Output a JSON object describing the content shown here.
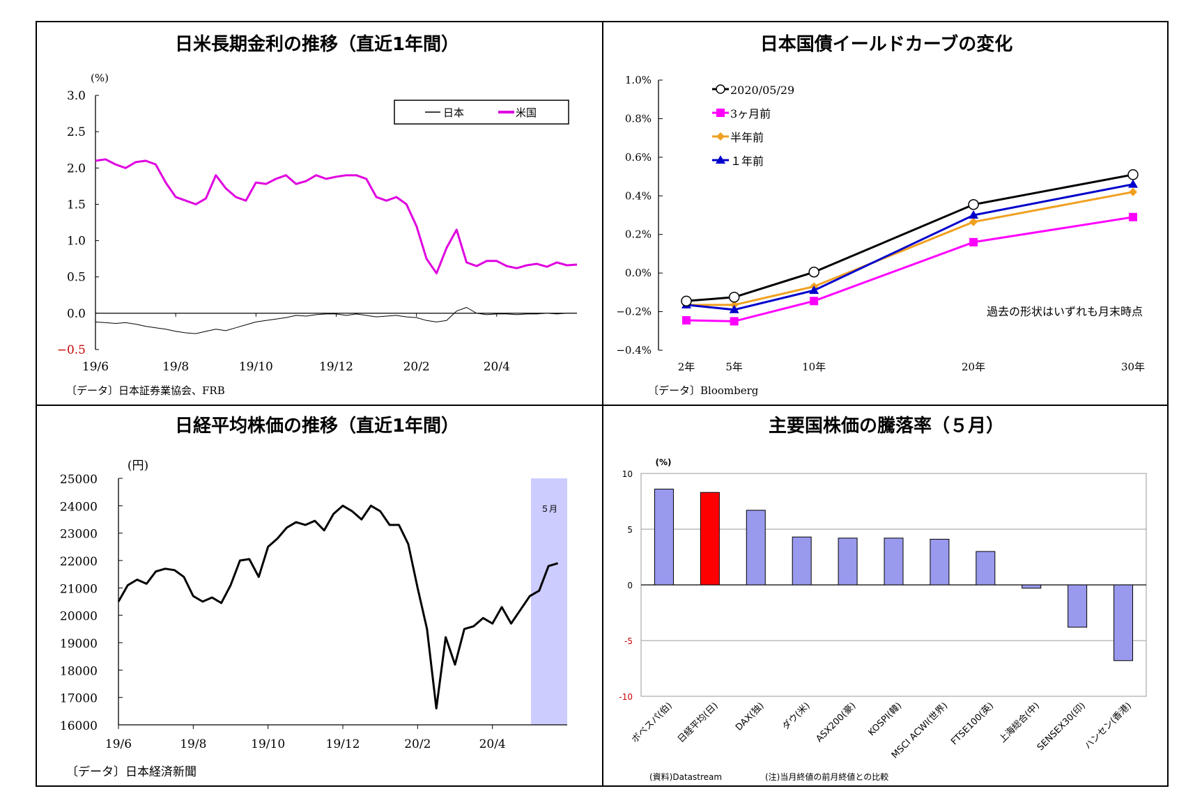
{
  "colors": {
    "japan": "#000000",
    "us": "#e000e0",
    "latest": "#000000",
    "three_months": "#ff00ff",
    "half_year": "#f0a020",
    "one_year": "#0000cc",
    "bar_default": "#9999ee",
    "bar_highlight": "#ff0000",
    "may_band": "#ccccff"
  },
  "chart_data": [
    {
      "type": "line",
      "title": "日米長期金利の推移（直近1年間）",
      "ylabel": "(%)",
      "ylim": [
        -0.5,
        3.0
      ],
      "yticks": [
        "3.0",
        "2.5",
        "2.0",
        "1.5",
        "1.0",
        "0.5",
        "0.0",
        "−0.5"
      ],
      "xticks": [
        "19/6",
        "19/8",
        "19/10",
        "19/12",
        "20/2",
        "20/4"
      ],
      "legend": [
        "日本",
        "米国"
      ],
      "legend_position": "top-right",
      "source": "〔データ〕日本証券業協会、FRB",
      "x_months": [
        0,
        0.25,
        0.5,
        0.75,
        1,
        1.25,
        1.5,
        1.75,
        2,
        2.25,
        2.5,
        2.75,
        3,
        3.25,
        3.5,
        3.75,
        4,
        4.25,
        4.5,
        4.75,
        5,
        5.25,
        5.5,
        5.75,
        6,
        6.25,
        6.5,
        6.75,
        7,
        7.25,
        7.5,
        7.75,
        8,
        8.25,
        8.5,
        8.75,
        9,
        9.25,
        9.5,
        9.75,
        10,
        10.25,
        10.5,
        10.75,
        11,
        11.25,
        11.5,
        11.75,
        12
      ],
      "series": [
        {
          "name": "日本",
          "values": [
            -0.12,
            -0.13,
            -0.14,
            -0.13,
            -0.15,
            -0.18,
            -0.2,
            -0.22,
            -0.25,
            -0.27,
            -0.28,
            -0.25,
            -0.22,
            -0.24,
            -0.2,
            -0.16,
            -0.12,
            -0.1,
            -0.08,
            -0.06,
            -0.03,
            -0.04,
            -0.02,
            -0.01,
            -0.01,
            -0.03,
            -0.01,
            -0.03,
            -0.05,
            -0.04,
            -0.03,
            -0.05,
            -0.06,
            -0.1,
            -0.12,
            -0.1,
            0.03,
            0.08,
            0.0,
            -0.02,
            -0.01,
            -0.01,
            -0.02,
            -0.01,
            -0.01,
            0.0,
            -0.01,
            0.0,
            0.0
          ]
        },
        {
          "name": "米国",
          "values": [
            2.1,
            2.12,
            2.05,
            2.0,
            2.08,
            2.1,
            2.05,
            1.8,
            1.6,
            1.55,
            1.5,
            1.58,
            1.9,
            1.72,
            1.6,
            1.55,
            1.8,
            1.78,
            1.85,
            1.9,
            1.78,
            1.82,
            1.9,
            1.85,
            1.88,
            1.9,
            1.9,
            1.85,
            1.6,
            1.55,
            1.6,
            1.5,
            1.2,
            0.75,
            0.55,
            0.9,
            1.15,
            0.7,
            0.65,
            0.72,
            0.72,
            0.65,
            0.62,
            0.66,
            0.68,
            0.64,
            0.7,
            0.66,
            0.67
          ]
        }
      ]
    },
    {
      "type": "line",
      "title": "日本国債イールドカーブの変化",
      "ylim": [
        -0.4,
        1.0
      ],
      "yticks": [
        "1.0%",
        "0.8%",
        "0.6%",
        "0.4%",
        "0.2%",
        "0.0%",
        "−0.2%",
        "−0.4%"
      ],
      "categories": [
        "2年",
        "5年",
        "10年",
        "20年",
        "30年"
      ],
      "x": [
        2,
        5,
        10,
        20,
        30
      ],
      "legend_position": "top-left",
      "annotation": "過去の形状はいずれも月末時点",
      "source": "〔データ〕Bloomberg",
      "series": [
        {
          "name": "2020/05/29",
          "values": [
            -0.145,
            -0.125,
            0.005,
            0.355,
            0.51
          ]
        },
        {
          "name": "3ヶ月前",
          "values": [
            -0.245,
            -0.25,
            -0.145,
            0.16,
            0.29
          ]
        },
        {
          "name": "半年前",
          "values": [
            -0.165,
            -0.165,
            -0.07,
            0.265,
            0.42
          ]
        },
        {
          "name": "１年前",
          "values": [
            -0.165,
            -0.19,
            -0.09,
            0.3,
            0.46
          ]
        }
      ]
    },
    {
      "type": "line",
      "title": "日経平均株価の推移（直近1年間）",
      "ylabel": "(円)",
      "ylim": [
        16000,
        25000
      ],
      "yticks": [
        "25000",
        "24000",
        "23000",
        "22000",
        "21000",
        "20000",
        "19000",
        "18000",
        "17000",
        "16000"
      ],
      "xticks": [
        "19/6",
        "19/8",
        "19/10",
        "19/12",
        "20/2",
        "20/4"
      ],
      "band_label": "５月",
      "band_months": [
        11,
        11.45
      ],
      "source": "〔データ〕日本経済新聞",
      "x_months": [
        0,
        0.25,
        0.5,
        0.75,
        1,
        1.25,
        1.5,
        1.75,
        2,
        2.25,
        2.5,
        2.75,
        3,
        3.25,
        3.5,
        3.75,
        4,
        4.25,
        4.5,
        4.75,
        5,
        5.25,
        5.5,
        5.75,
        6,
        6.25,
        6.5,
        6.75,
        7,
        7.25,
        7.5,
        7.75,
        8,
        8.25,
        8.5,
        8.75,
        9,
        9.25,
        9.5,
        9.75,
        10,
        10.25,
        10.5,
        10.75,
        11,
        11.25,
        11.5,
        11.75
      ],
      "series": [
        {
          "name": "",
          "values": [
            20500,
            21100,
            21300,
            21150,
            21600,
            21700,
            21650,
            21400,
            20700,
            20500,
            20650,
            20450,
            21100,
            22000,
            22050,
            21400,
            22500,
            22800,
            23200,
            23400,
            23300,
            23450,
            23100,
            23700,
            24000,
            23800,
            23500,
            24000,
            23800,
            23300,
            23300,
            22600,
            21000,
            19500,
            16600,
            19200,
            18200,
            19500,
            19600,
            19900,
            19700,
            20300,
            19700,
            20200,
            20700,
            20900,
            21800,
            21900
          ]
        }
      ]
    },
    {
      "type": "bar",
      "title": "主要国株価の騰落率（５月）",
      "ylabel": "(%)",
      "ylim": [
        -10,
        10
      ],
      "yticks": [
        "10",
        "5",
        "0",
        "-5",
        "-10"
      ],
      "categories": [
        "ボベスパ(伯)",
        "日経平均(日)",
        "DAX(独)",
        "ダウ(米)",
        "ASX200(豪)",
        "KOSPI(韓)",
        "MSCI ACWI(世界)",
        "FTSE100(英)",
        "上海総合(中)",
        "SENSEX30(印)",
        "ハンセン(香港)"
      ],
      "values": [
        8.6,
        8.3,
        6.7,
        4.3,
        4.2,
        4.2,
        4.1,
        3.0,
        -0.3,
        -3.8,
        -6.8
      ],
      "highlight_index": 1,
      "source": "(資料)Datastream",
      "footnote": "(注)当月終値の前月終値との比較"
    }
  ]
}
